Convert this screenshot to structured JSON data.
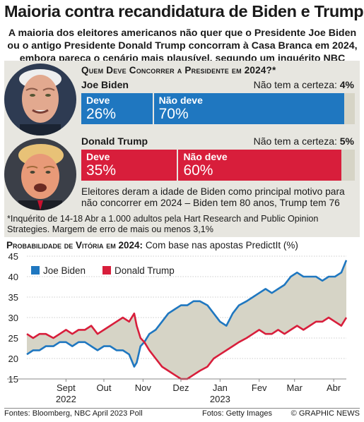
{
  "header": {
    "title": "Maioria contra recandidatura de Biden e Trump",
    "subtitle": "A maioria dos eleitores americanos não quer que o Presidente Joe Biden ou o antigo Presidente Donald Trump concorram à Casa Branca em 2024, embora pareça o cenário mais plausível, segundo um inquérito NBC News"
  },
  "poll": {
    "question": "Quem Deve Concorrer a Presidente em 2024?*",
    "candidates": [
      {
        "name": "Joe Biden",
        "should_label": "Deve",
        "should": "26%",
        "should_value": 26,
        "not_label": "Não deve",
        "not": "70%",
        "not_value": 70,
        "unsure_label": "Não tem a certeza:",
        "unsure": "4%",
        "unsure_value": 4,
        "color": "#1f77c0"
      },
      {
        "name": "Donald Trump",
        "should_label": "Deve",
        "should": "35%",
        "should_value": 35,
        "not_label": "Não deve",
        "not": "60%",
        "not_value": 60,
        "unsure_label": "Não tem a certeza:",
        "unsure": "5%",
        "unsure_value": 5,
        "color": "#d81e3b"
      }
    ],
    "note": "Eleitores deram a idade de Biden como principal motivo para não concorrer em 2024 – Biden tem 80 anos, Trump tem 76",
    "footnote": "*Inquérito de 14-18 Abr a 1.000 adultos pela Hart Research and Public Opinion Strategies. Margem de erro de mais ou menos 3,1%"
  },
  "chart_title": {
    "bold": "Probabilidade de Vitória em 2024:",
    "rest": "Com base nas apostas PredictIt (%)"
  },
  "chart_data": {
    "type": "line",
    "ylim": [
      15,
      45
    ],
    "yticks": [
      15,
      20,
      25,
      30,
      35,
      40,
      45
    ],
    "x_range": [
      "2022-08-15",
      "2023-04-25"
    ],
    "xticks": [
      {
        "label": "Sept",
        "sub": "2022",
        "date": "2022-09-15"
      },
      {
        "label": "Out",
        "sub": "",
        "date": "2022-10-15"
      },
      {
        "label": "Nov",
        "sub": "",
        "date": "2022-11-15"
      },
      {
        "label": "Dez",
        "sub": "",
        "date": "2022-12-15"
      },
      {
        "label": "Jan",
        "sub": "2023",
        "date": "2023-01-15"
      },
      {
        "label": "Fev",
        "sub": "",
        "date": "2023-02-15"
      },
      {
        "label": "Mar",
        "sub": "",
        "date": "2023-03-15"
      },
      {
        "label": "Abr",
        "sub": "",
        "date": "2023-04-15"
      }
    ],
    "legend": "top-left",
    "series": [
      {
        "name": "Joe Biden",
        "color": "#1f77c0",
        "points": [
          [
            "2022-08-15",
            21
          ],
          [
            "2022-08-20",
            22
          ],
          [
            "2022-08-25",
            22
          ],
          [
            "2022-08-30",
            23
          ],
          [
            "2022-09-05",
            23
          ],
          [
            "2022-09-10",
            24
          ],
          [
            "2022-09-15",
            24
          ],
          [
            "2022-09-20",
            23
          ],
          [
            "2022-09-25",
            24
          ],
          [
            "2022-09-30",
            24
          ],
          [
            "2022-10-05",
            23
          ],
          [
            "2022-10-10",
            22
          ],
          [
            "2022-10-15",
            23
          ],
          [
            "2022-10-20",
            23
          ],
          [
            "2022-10-25",
            22
          ],
          [
            "2022-10-30",
            22
          ],
          [
            "2022-11-04",
            21
          ],
          [
            "2022-11-08",
            18
          ],
          [
            "2022-11-10",
            19
          ],
          [
            "2022-11-13",
            23
          ],
          [
            "2022-11-16",
            24
          ],
          [
            "2022-11-20",
            26
          ],
          [
            "2022-11-25",
            27
          ],
          [
            "2022-11-30",
            29
          ],
          [
            "2022-12-05",
            31
          ],
          [
            "2022-12-10",
            32
          ],
          [
            "2022-12-15",
            33
          ],
          [
            "2022-12-20",
            33
          ],
          [
            "2022-12-25",
            34
          ],
          [
            "2022-12-30",
            34
          ],
          [
            "2023-01-05",
            33
          ],
          [
            "2023-01-10",
            31
          ],
          [
            "2023-01-15",
            29
          ],
          [
            "2023-01-20",
            28
          ],
          [
            "2023-01-25",
            31
          ],
          [
            "2023-01-30",
            33
          ],
          [
            "2023-02-05",
            34
          ],
          [
            "2023-02-10",
            35
          ],
          [
            "2023-02-15",
            36
          ],
          [
            "2023-02-20",
            37
          ],
          [
            "2023-02-25",
            36
          ],
          [
            "2023-03-02",
            37
          ],
          [
            "2023-03-07",
            38
          ],
          [
            "2023-03-12",
            40
          ],
          [
            "2023-03-17",
            41
          ],
          [
            "2023-03-22",
            40
          ],
          [
            "2023-03-27",
            40
          ],
          [
            "2023-04-01",
            40
          ],
          [
            "2023-04-06",
            39
          ],
          [
            "2023-04-11",
            40
          ],
          [
            "2023-04-16",
            40
          ],
          [
            "2023-04-21",
            41
          ],
          [
            "2023-04-25",
            44
          ]
        ]
      },
      {
        "name": "Donald Trump",
        "color": "#d81e3b",
        "points": [
          [
            "2022-08-15",
            26
          ],
          [
            "2022-08-20",
            25
          ],
          [
            "2022-08-25",
            26
          ],
          [
            "2022-08-30",
            26
          ],
          [
            "2022-09-05",
            25
          ],
          [
            "2022-09-10",
            26
          ],
          [
            "2022-09-15",
            27
          ],
          [
            "2022-09-20",
            26
          ],
          [
            "2022-09-25",
            27
          ],
          [
            "2022-09-30",
            27
          ],
          [
            "2022-10-05",
            28
          ],
          [
            "2022-10-10",
            26
          ],
          [
            "2022-10-15",
            27
          ],
          [
            "2022-10-20",
            28
          ],
          [
            "2022-10-25",
            29
          ],
          [
            "2022-10-30",
            30
          ],
          [
            "2022-11-04",
            29
          ],
          [
            "2022-11-08",
            31
          ],
          [
            "2022-11-10",
            28
          ],
          [
            "2022-11-13",
            25
          ],
          [
            "2022-11-16",
            24
          ],
          [
            "2022-11-20",
            22
          ],
          [
            "2022-11-25",
            20
          ],
          [
            "2022-11-30",
            18
          ],
          [
            "2022-12-05",
            17
          ],
          [
            "2022-12-10",
            16
          ],
          [
            "2022-12-15",
            15
          ],
          [
            "2022-12-20",
            15
          ],
          [
            "2022-12-25",
            16
          ],
          [
            "2022-12-30",
            17
          ],
          [
            "2023-01-05",
            18
          ],
          [
            "2023-01-10",
            20
          ],
          [
            "2023-01-15",
            21
          ],
          [
            "2023-01-20",
            22
          ],
          [
            "2023-01-25",
            23
          ],
          [
            "2023-01-30",
            24
          ],
          [
            "2023-02-05",
            25
          ],
          [
            "2023-02-10",
            26
          ],
          [
            "2023-02-15",
            27
          ],
          [
            "2023-02-20",
            26
          ],
          [
            "2023-02-25",
            26
          ],
          [
            "2023-03-02",
            27
          ],
          [
            "2023-03-07",
            26
          ],
          [
            "2023-03-12",
            27
          ],
          [
            "2023-03-17",
            28
          ],
          [
            "2023-03-22",
            27
          ],
          [
            "2023-03-27",
            28
          ],
          [
            "2023-04-01",
            29
          ],
          [
            "2023-04-06",
            29
          ],
          [
            "2023-04-11",
            30
          ],
          [
            "2023-04-16",
            29
          ],
          [
            "2023-04-21",
            28
          ],
          [
            "2023-04-25",
            30
          ]
        ]
      }
    ],
    "fill_between_color": "#d6d4c6"
  },
  "footer": {
    "sources": "Fontes: Bloomberg, NBC April 2023 Poll",
    "photos": "Fotos: Getty Images",
    "brand": "© GRAPHIC NEWS"
  }
}
